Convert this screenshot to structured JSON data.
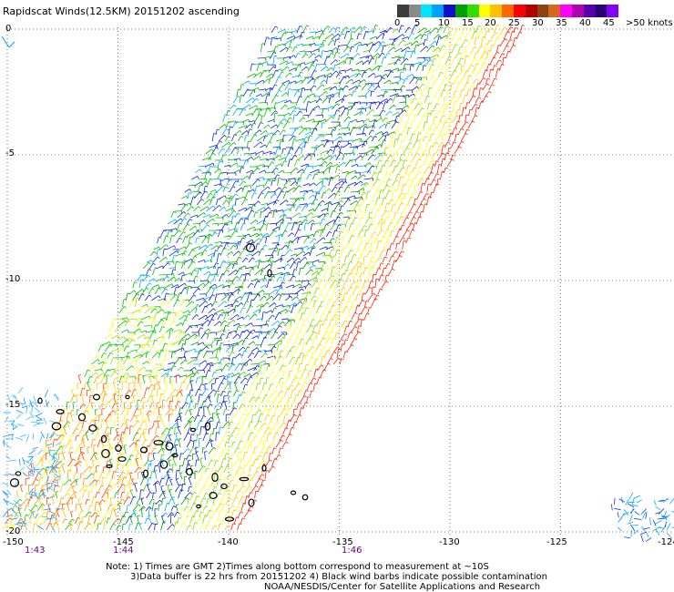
{
  "title": "Rapidscat Winds(12.5KM) 20151202 ascending",
  "colorbar": {
    "colors": [
      "#3c3c3c",
      "#8a8a8a",
      "#00e5ff",
      "#00a0ff",
      "#1010cc",
      "#00a000",
      "#33dd00",
      "#ffff00",
      "#ffc000",
      "#ff6600",
      "#ff0000",
      "#b00000",
      "#8b4513",
      "#d2691e",
      "#ff00ff",
      "#b000b0",
      "#5500aa",
      "#2a0070",
      "#8000ff"
    ],
    "labels": [
      "0",
      "5",
      "10",
      "15",
      "20",
      "25",
      "30",
      "35",
      "40",
      "45",
      ">50 knots"
    ]
  },
  "map": {
    "lon_range": [
      -150,
      -124
    ],
    "lat_range": [
      -20,
      0
    ],
    "lon_ticks": [
      "-150",
      "-145",
      "-140",
      "-135",
      "-130",
      "-125",
      "-124"
    ],
    "lat_ticks": [
      "0",
      "-5",
      "-10",
      "-15",
      "-20"
    ]
  },
  "time_labels": [
    "1:43",
    "1:44",
    "1:46"
  ],
  "notes": {
    "line1": "Note: 1) Times are GMT 2)Times along bottom correspond to measurement at ~10S",
    "line2": "3)Data buffer is 22 hrs from 20151202 4) Black wind barbs indicate possible contamination",
    "line3": "NOAA/NESDIS/Center for Satellite Applications and Research"
  }
}
